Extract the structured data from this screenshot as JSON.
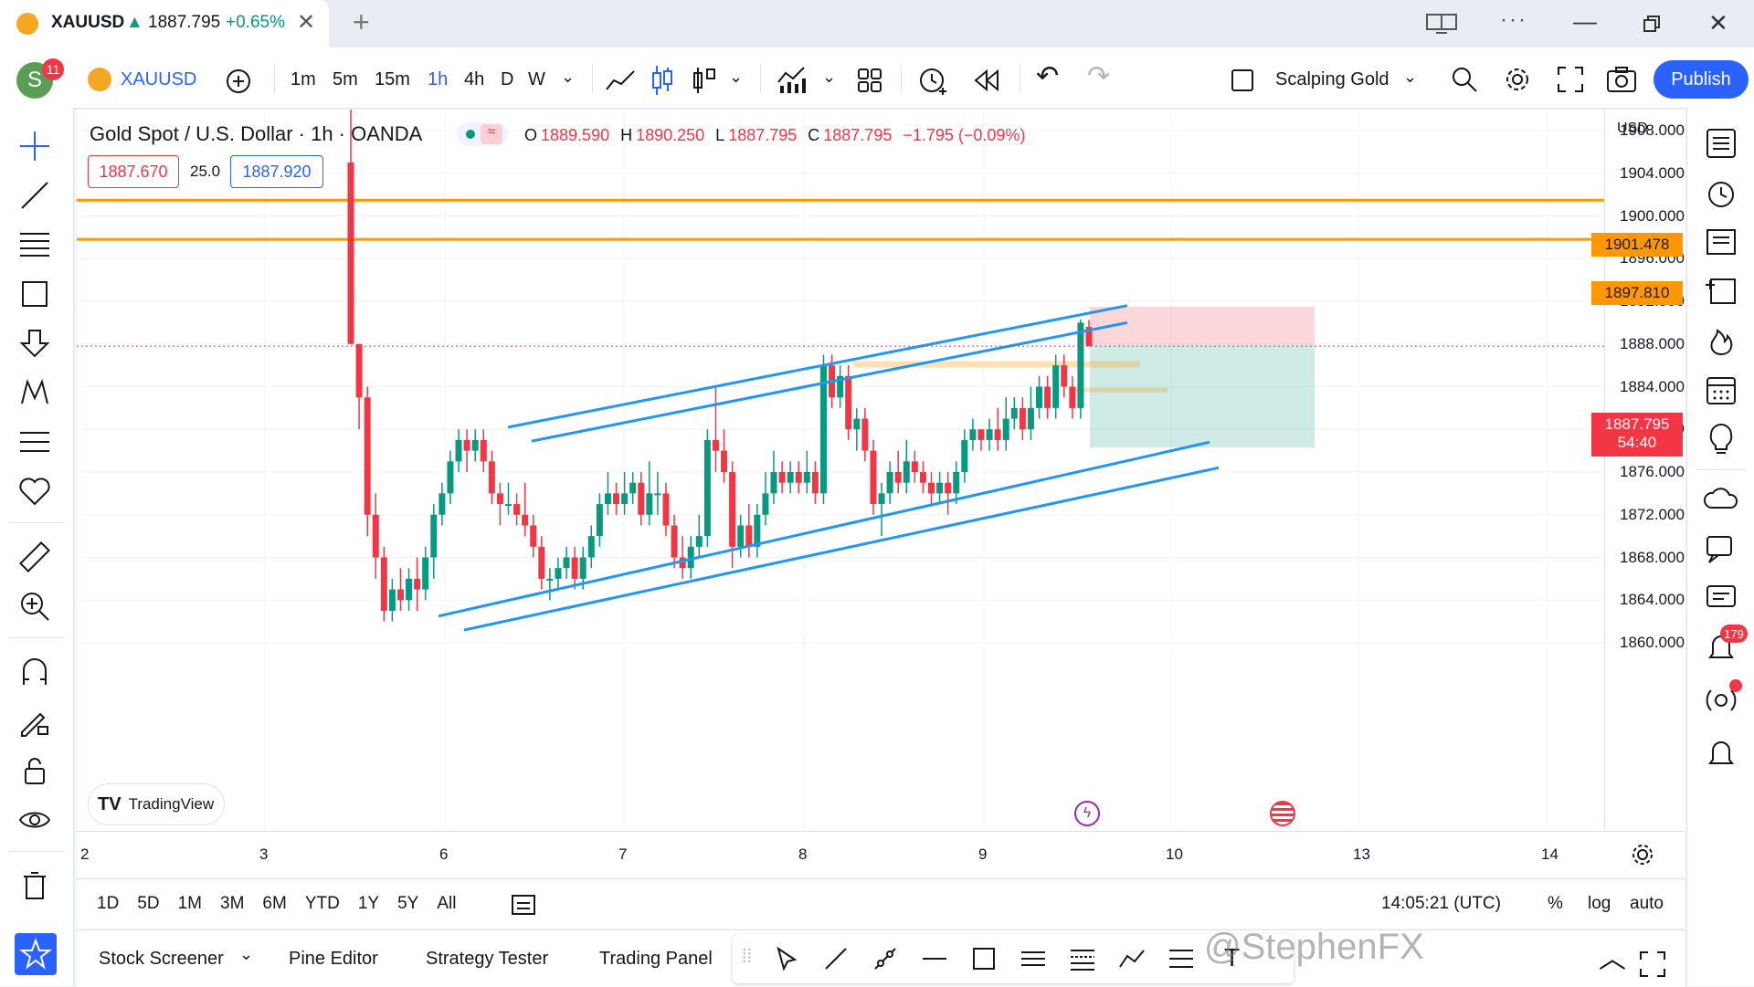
{
  "browser_tab": {
    "symbol": "XAUUSD",
    "arrow": "▲",
    "price": "1887.795",
    "change": "+0.65%"
  },
  "header": {
    "avatar_letter": "S",
    "notif_count": "11",
    "symbol": "XAUUSD",
    "intervals": [
      "1m",
      "5m",
      "15m",
      "1h",
      "4h",
      "D",
      "W"
    ],
    "active_interval": "1h",
    "layout_name": "Scalping Gold",
    "publish_label": "Publish"
  },
  "legend": {
    "title": "Gold Spot / U.S. Dollar · 1h · OANDA",
    "o_label": "O",
    "o": "1889.590",
    "h_label": "H",
    "h": "1890.250",
    "l_label": "L",
    "l": "1887.795",
    "c_label": "C",
    "c": "1887.795",
    "chg": "−1.795 (−0.09%)",
    "bid": "1887.670",
    "spread": "25.0",
    "ask": "1887.920"
  },
  "price_axis": {
    "currency": "USD",
    "ticks": [
      "1908.000",
      "1904.000",
      "1900.000",
      "1896.000",
      "1892.000",
      "1888.000",
      "1884.000",
      "1880.000",
      "1876.000",
      "1872.000",
      "1868.000",
      "1864.000",
      "1860.000"
    ],
    "line1": "1901.478",
    "line2": "1897.810",
    "current": "1887.795",
    "countdown": "54:40"
  },
  "time_axis": {
    "ticks": [
      "2",
      "3",
      "6",
      "7",
      "8",
      "9",
      "10",
      "13",
      "14"
    ]
  },
  "watermark": "TradingView",
  "bottom_controls": {
    "ranges": [
      "1D",
      "5D",
      "1M",
      "3M",
      "6M",
      "YTD",
      "1Y",
      "5Y",
      "All"
    ],
    "clock": "14:05:21 (UTC)",
    "percent": "%",
    "log": "log",
    "auto": "auto"
  },
  "bottom_tabs": [
    "Stock Screener",
    "Pine Editor",
    "Strategy Tester",
    "Trading Panel"
  ],
  "overlay_text": "@StephenFX",
  "right_badge": "179",
  "colors": {
    "accent": "#2962ff",
    "orange": "#ff9800",
    "up": "#089981",
    "down": "#f23645",
    "channel": "#2196f3"
  }
}
